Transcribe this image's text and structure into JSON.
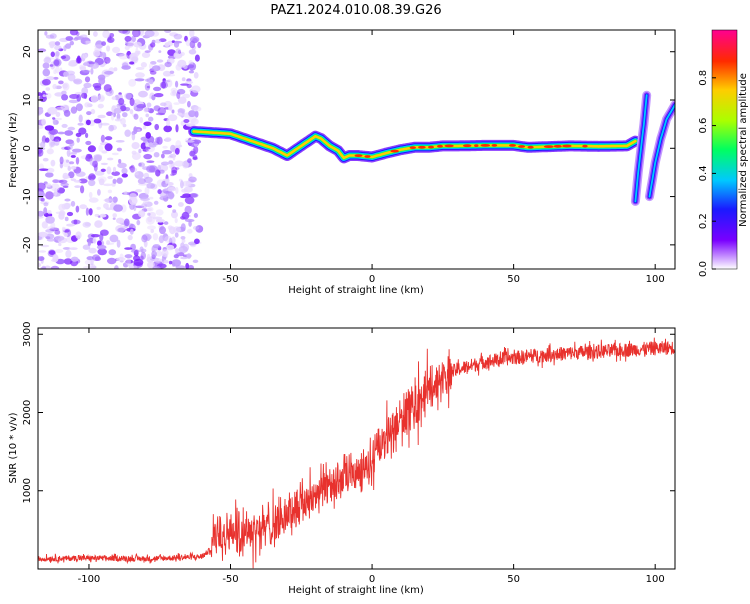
{
  "title": "PAZ1.2024.010.08.39.G26",
  "chart_data": [
    {
      "type": "heatmap",
      "xlabel": "Height of straight line (km)",
      "ylabel": "Frequency (Hz)",
      "xlim": [
        -118,
        107
      ],
      "ylim": [
        -25,
        24.5
      ],
      "xticks": [
        -100,
        -50,
        0,
        50,
        100
      ],
      "xtick_labels": [
        "-100",
        "-50",
        "0",
        "50",
        "100"
      ],
      "yticks": [
        -20,
        -10,
        0,
        10,
        20
      ],
      "ytick_labels": [
        "-20",
        "-10",
        "0",
        "10",
        "20"
      ],
      "noise_region_x": [
        -118,
        -61
      ],
      "ridge": {
        "x": [
          -63,
          -55,
          -50,
          -45,
          -40,
          -35,
          -30,
          -25,
          -20,
          -18,
          -15,
          -12,
          -10,
          -8,
          -5,
          0,
          5,
          10,
          15,
          20,
          25,
          30,
          40,
          50,
          55,
          60,
          70,
          80,
          90,
          93
        ],
        "y": [
          3.5,
          3.2,
          3.0,
          2.0,
          1.0,
          0.0,
          -1.5,
          0.5,
          2.5,
          2.0,
          0.5,
          -0.5,
          -2.0,
          -1.5,
          -1.5,
          -1.8,
          -1.0,
          -0.3,
          0.2,
          0.2,
          0.5,
          0.5,
          0.6,
          0.6,
          0.2,
          0.3,
          0.5,
          0.4,
          0.5,
          1.5
        ]
      },
      "tail_segments": [
        {
          "x": [
            93,
            94,
            95,
            96,
            97
          ],
          "y": [
            -11,
            -5,
            0,
            5,
            11
          ]
        },
        {
          "x": [
            98,
            100,
            102,
            104,
            107
          ],
          "y": [
            -10,
            -3,
            2,
            6,
            9
          ]
        }
      ],
      "colorbar": {
        "label": "Normalized spectral amplitude",
        "range": [
          0,
          1
        ],
        "ticks": [
          0.0,
          0.2,
          0.4,
          0.6,
          0.8
        ],
        "tick_labels": [
          "0.0",
          "0.2",
          "0.4",
          "0.6",
          "0.8"
        ]
      }
    },
    {
      "type": "line",
      "xlabel": "Height of straight line (km)",
      "ylabel": "SNR (10 * v/v)",
      "xlim": [
        -118,
        107
      ],
      "ylim": [
        0,
        3080
      ],
      "xticks": [
        -100,
        -50,
        0,
        50,
        100
      ],
      "xtick_labels": [
        "-100",
        "-50",
        "0",
        "50",
        "100"
      ],
      "yticks": [
        1000,
        2000,
        3000
      ],
      "ytick_labels": [
        "1000",
        "2000",
        "3000"
      ],
      "series": [
        {
          "color": "#e8312d",
          "x": [
            -118,
            -100,
            -80,
            -65,
            -60,
            -57,
            -55,
            -50,
            -45,
            -40,
            -35,
            -30,
            -25,
            -20,
            -15,
            -10,
            -5,
            0,
            5,
            10,
            15,
            20,
            25,
            30,
            40,
            50,
            60,
            70,
            80,
            90,
            100,
            107
          ],
          "y": [
            130,
            140,
            130,
            150,
            160,
            250,
            500,
            460,
            500,
            520,
            560,
            700,
            850,
            950,
            1100,
            1150,
            1250,
            1350,
            1650,
            1900,
            2100,
            2300,
            2450,
            2550,
            2650,
            2700,
            2730,
            2760,
            2780,
            2800,
            2820,
            2830
          ]
        }
      ]
    }
  ]
}
